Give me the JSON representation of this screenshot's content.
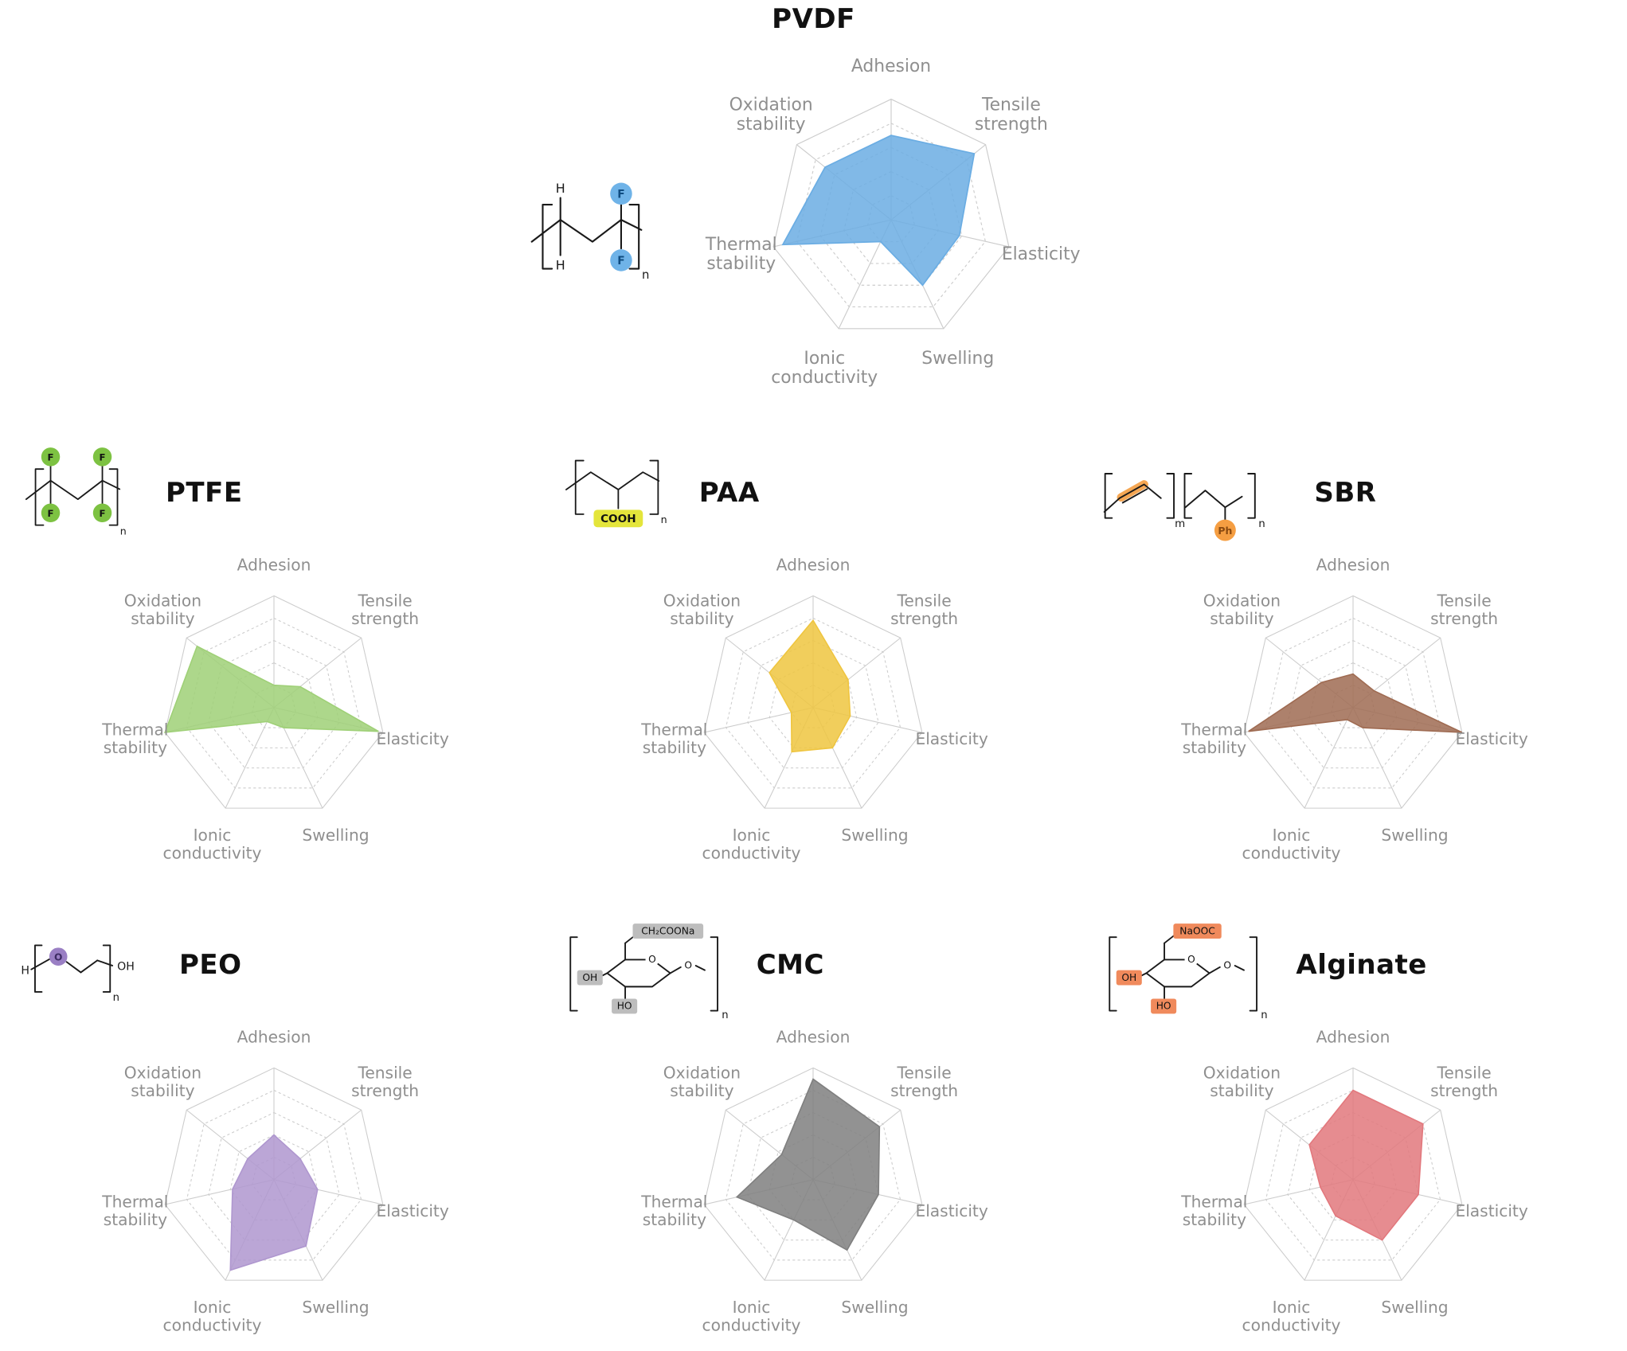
{
  "chart_data": [
    {
      "type": "radar",
      "title": "PVDF",
      "color": "#6BADE3",
      "range": [
        0,
        5
      ],
      "grid_rings": 5,
      "categories": [
        "Adhesion",
        "Tensile strength",
        "Elasticity",
        "Swelling",
        "Ionic conductivity",
        "Thermal stability",
        "Oxidation stability"
      ],
      "values": [
        3.5,
        4.4,
        2.9,
        3.0,
        1.0,
        4.6,
        3.5
      ],
      "structure_labels": {
        "h1": "H",
        "h2": "H",
        "f1": "F",
        "f2": "F",
        "sub": "n"
      }
    },
    {
      "type": "radar",
      "title": "PTFE",
      "color": "#9FD077",
      "range": [
        0,
        5
      ],
      "grid_rings": 5,
      "categories": [
        "Adhesion",
        "Tensile strength",
        "Elasticity",
        "Swelling",
        "Ionic conductivity",
        "Thermal stability",
        "Oxidation stability"
      ],
      "values": [
        1.0,
        1.5,
        4.8,
        1.0,
        0.7,
        5.0,
        4.4
      ],
      "structure_labels": {
        "f1": "F",
        "f2": "F",
        "f3": "F",
        "f4": "F",
        "sub": "n"
      }
    },
    {
      "type": "radar",
      "title": "PAA",
      "color": "#EFC53F",
      "range": [
        0,
        5
      ],
      "grid_rings": 5,
      "categories": [
        "Adhesion",
        "Tensile strength",
        "Elasticity",
        "Swelling",
        "Ionic conductivity",
        "Thermal stability",
        "Oxidation stability"
      ],
      "values": [
        3.9,
        2.0,
        1.7,
        2.0,
        2.2,
        1.0,
        2.5
      ],
      "structure_labels": {
        "group": "COOH",
        "sub": "n"
      }
    },
    {
      "type": "radar",
      "title": "SBR",
      "color": "#9F6B52",
      "range": [
        0,
        5
      ],
      "grid_rings": 5,
      "categories": [
        "Adhesion",
        "Tensile strength",
        "Elasticity",
        "Swelling",
        "Ionic conductivity",
        "Thermal stability",
        "Oxidation stability"
      ],
      "values": [
        1.5,
        1.2,
        5.0,
        1.0,
        0.6,
        4.8,
        1.8
      ],
      "structure_labels": {
        "ph": "Ph",
        "sub_m": "m",
        "sub_n": "n"
      }
    },
    {
      "type": "radar",
      "title": "PEO",
      "color": "#AF97CF",
      "range": [
        0,
        5
      ],
      "grid_rings": 5,
      "categories": [
        "Adhesion",
        "Tensile strength",
        "Elasticity",
        "Swelling",
        "Ionic conductivity",
        "Thermal stability",
        "Oxidation stability"
      ],
      "values": [
        2.0,
        1.5,
        2.0,
        3.3,
        4.5,
        1.9,
        1.5
      ],
      "structure_labels": {
        "h": "H",
        "o": "O",
        "oh": "OH",
        "sub": "n"
      }
    },
    {
      "type": "radar",
      "title": "CMC",
      "color": "#7F7F7F",
      "range": [
        0,
        5
      ],
      "grid_rings": 5,
      "categories": [
        "Adhesion",
        "Tensile strength",
        "Elasticity",
        "Swelling",
        "Ionic conductivity",
        "Thermal stability",
        "Oxidation stability"
      ],
      "values": [
        4.5,
        3.8,
        3.0,
        3.5,
        2.0,
        3.5,
        1.8
      ],
      "structure_labels": {
        "top": "CH₂COONa",
        "left": "OH",
        "bottom": "HO",
        "ring_o": "O",
        "link_o": "O",
        "sub": "n"
      }
    },
    {
      "type": "radar",
      "title": "Alginate",
      "color": "#E2787D",
      "range": [
        0,
        5
      ],
      "grid_rings": 5,
      "categories": [
        "Adhesion",
        "Tensile strength",
        "Elasticity",
        "Swelling",
        "Ionic conductivity",
        "Thermal stability",
        "Oxidation stability"
      ],
      "values": [
        4.0,
        4.0,
        3.0,
        3.0,
        1.8,
        1.5,
        2.5
      ],
      "structure_labels": {
        "top": "NaOOC",
        "left": "OH",
        "bottom": "HO",
        "ring_o": "O",
        "link_o": "O",
        "sub": "n"
      }
    }
  ],
  "style": {
    "grid_color": "#cccccc",
    "axis_label_color": "#8f8f8f",
    "fill_opacity": 0.85
  }
}
